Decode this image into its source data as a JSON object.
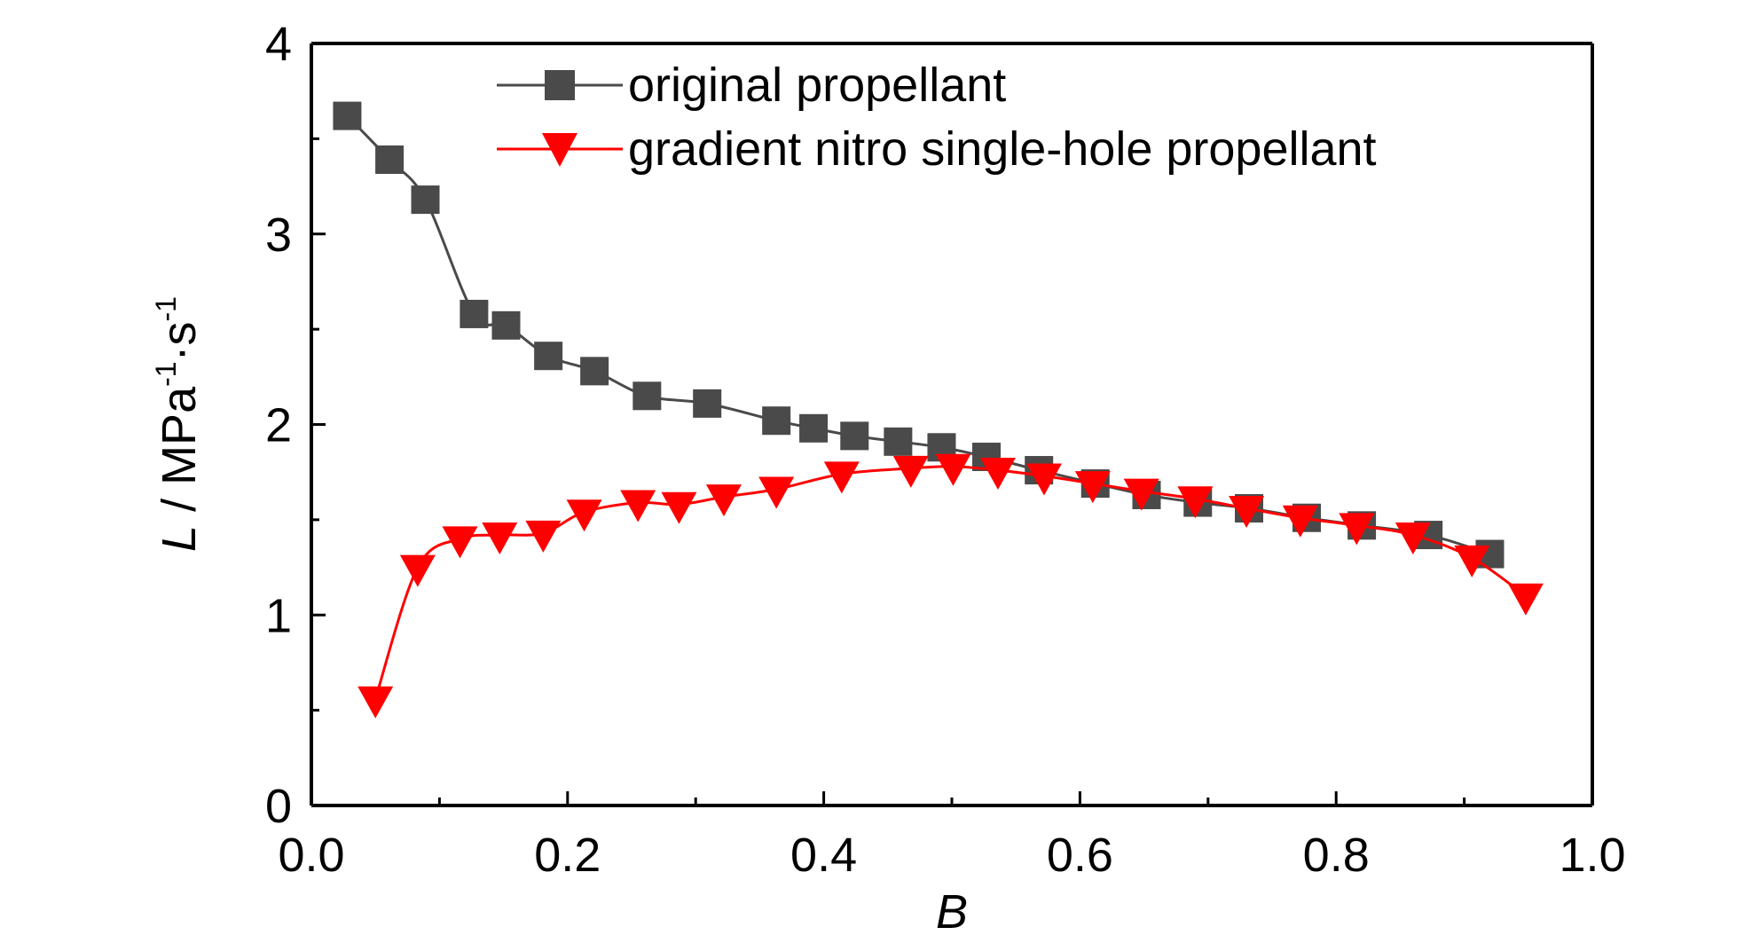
{
  "chart_data": {
    "type": "line",
    "xlabel": "B",
    "ylabel": "L / MPa⁻¹·s⁻¹",
    "ylabel_parts": {
      "var": "L",
      "unit": " / MPa",
      "exp1": "-1",
      "mid": "·s",
      "exp2": "-1"
    },
    "xlim": [
      0.0,
      1.0
    ],
    "ylim": [
      0,
      4
    ],
    "x_ticks": [
      0.0,
      0.2,
      0.4,
      0.6,
      0.8,
      1.0
    ],
    "x_tick_labels": [
      "0.0",
      "0.2",
      "0.4",
      "0.6",
      "0.8",
      "1.0"
    ],
    "y_ticks": [
      0,
      1,
      2,
      3,
      4
    ],
    "y_tick_labels": [
      "0",
      "1",
      "2",
      "3",
      "4"
    ],
    "grid": false,
    "legend_position": "top-center",
    "series": [
      {
        "name": "original propellant",
        "color": "#4a4a4a",
        "marker": "square",
        "x": [
          0.028,
          0.061,
          0.089,
          0.127,
          0.152,
          0.185,
          0.221,
          0.262,
          0.309,
          0.363,
          0.392,
          0.424,
          0.458,
          0.492,
          0.527,
          0.568,
          0.612,
          0.652,
          0.692,
          0.732,
          0.777,
          0.82,
          0.872,
          0.92
        ],
        "y": [
          3.62,
          3.39,
          3.18,
          2.58,
          2.52,
          2.36,
          2.28,
          2.15,
          2.11,
          2.02,
          1.98,
          1.94,
          1.91,
          1.88,
          1.83,
          1.76,
          1.69,
          1.63,
          1.59,
          1.56,
          1.51,
          1.47,
          1.42,
          1.32
        ]
      },
      {
        "name": "gradient nitro single-hole propellant",
        "color": "#ff0000",
        "marker": "triangle-down",
        "x": [
          0.05,
          0.083,
          0.116,
          0.147,
          0.181,
          0.213,
          0.255,
          0.287,
          0.322,
          0.363,
          0.414,
          0.468,
          0.501,
          0.536,
          0.572,
          0.61,
          0.648,
          0.69,
          0.73,
          0.772,
          0.816,
          0.86,
          0.906,
          0.948
        ],
        "y": [
          0.56,
          1.25,
          1.4,
          1.42,
          1.43,
          1.54,
          1.59,
          1.58,
          1.62,
          1.66,
          1.74,
          1.77,
          1.78,
          1.76,
          1.73,
          1.69,
          1.65,
          1.61,
          1.56,
          1.51,
          1.47,
          1.42,
          1.3,
          1.1
        ]
      }
    ]
  }
}
